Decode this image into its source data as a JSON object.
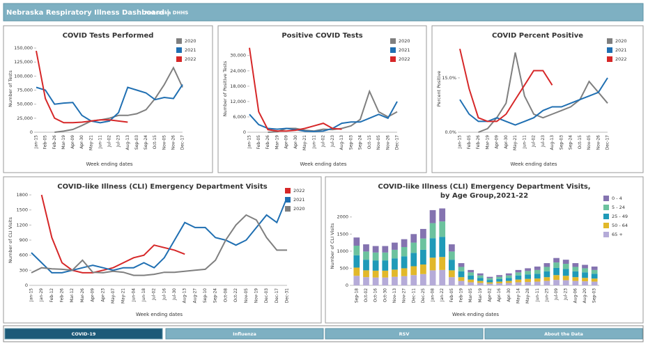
{
  "header": {
    "title": "Nebraska Respiratory Illness Dashboard |",
    "org": "Nebraska DHHS"
  },
  "tabs": {
    "items": [
      "COVID-19",
      "Influenza",
      "RSV",
      "About the Data"
    ],
    "active": 0
  },
  "chart_data": [
    {
      "type": "line",
      "title": "COVID Tests Performed",
      "y_label": "Number of Tests",
      "x_label": "Week ending dates",
      "legend": "top-right",
      "categories": [
        "Jan-15",
        "Feb-05",
        "Feb-26",
        "Mar-19",
        "Apr-09",
        "Apr-30",
        "May-21",
        "Jun-11",
        "Jul-02",
        "Jul-23",
        "Aug-13",
        "Sep-03",
        "Sep-24",
        "Oct-15",
        "Nov-05",
        "Nov-26",
        "Dec-17"
      ],
      "ylim": [
        0,
        155000
      ],
      "yticks": [
        0,
        {
          "value": 25000,
          "label": "25,000"
        },
        {
          "value": 50000,
          "label": "50,000"
        },
        {
          "value": 75000,
          "label": "75,000"
        },
        {
          "value": 100000,
          "label": "100,000"
        },
        {
          "value": 125000,
          "label": "125,000"
        },
        {
          "value": 150000,
          "label": "150,000"
        }
      ],
      "series": [
        {
          "name": "2020",
          "color": "#7f7f7f",
          "values": [
            null,
            null,
            0,
            2000,
            5000,
            12000,
            20000,
            22000,
            25000,
            30000,
            30000,
            33000,
            40000,
            60000,
            85000,
            115000,
            80000
          ]
        },
        {
          "name": "2021",
          "color": "#1f6fb2",
          "values": [
            80000,
            75000,
            50000,
            52000,
            53000,
            30000,
            20000,
            17000,
            20000,
            35000,
            80000,
            75000,
            70000,
            58000,
            62000,
            60000,
            85000
          ]
        },
        {
          "name": "2022",
          "color": "#d62728",
          "values": [
            145000,
            60000,
            25000,
            17000,
            17000,
            18000,
            20000,
            22000,
            22000,
            20000,
            18000,
            null,
            null,
            null,
            null,
            null,
            null
          ]
        }
      ]
    },
    {
      "type": "line",
      "title": "Positive COVID Tests",
      "y_label": "Number of Positive Tests",
      "x_label": "Week ending dates",
      "legend": "top-right",
      "categories": [
        "Jan-15",
        "Feb-05",
        "Feb-26",
        "Mar-19",
        "Apr-09",
        "Apr-30",
        "May-21",
        "Jun-11",
        "Jul-02",
        "Jul-23",
        "Aug-13",
        "Sep-03",
        "Sep-24",
        "Oct-15",
        "Nov-05",
        "Nov-26",
        "Dec-17"
      ],
      "ylim": [
        0,
        34000
      ],
      "yticks": [
        0,
        {
          "value": 6000,
          "label": "6,000"
        },
        {
          "value": 12000,
          "label": "12,000"
        },
        {
          "value": 18000,
          "label": "18,000"
        },
        {
          "value": 24000,
          "label": "24,000"
        },
        {
          "value": 30000,
          "label": "30,000"
        }
      ],
      "series": [
        {
          "name": "2020",
          "color": "#7f7f7f",
          "values": [
            null,
            null,
            0,
            200,
            1500,
            1500,
            800,
            500,
            1200,
            1000,
            1500,
            2500,
            5000,
            16000,
            8000,
            6000,
            8000
          ]
        },
        {
          "name": "2021",
          "color": "#1f6fb2",
          "values": [
            7000,
            3000,
            1500,
            1200,
            1500,
            1000,
            400,
            300,
            500,
            1500,
            3500,
            4000,
            4000,
            5500,
            7000,
            5500,
            12000
          ]
        },
        {
          "name": "2022",
          "color": "#d62728",
          "values": [
            33000,
            8000,
            1000,
            500,
            500,
            800,
            1500,
            2500,
            3500,
            1500,
            1200,
            null,
            null,
            null,
            null,
            null,
            null
          ]
        }
      ]
    },
    {
      "type": "line",
      "title": "COVID Percent Positive",
      "y_label": "Percent Positive",
      "x_label": "Week ending dates",
      "legend": "top-right",
      "categories": [
        "Jan-15",
        "Feb-05",
        "Feb-26",
        "Mar-19",
        "Apr-09",
        "Apr-30",
        "May-21",
        "Jun-11",
        "Jul-02",
        "Jul-23",
        "Aug-13",
        "Sep-03",
        "Sep-24",
        "Oct-15",
        "Nov-05",
        "Nov-26",
        "Dec-17"
      ],
      "ylim": [
        0,
        24
      ],
      "yticks": [
        {
          "value": 0,
          "label": "0.0%"
        },
        {
          "value": 15,
          "label": "15.0%"
        }
      ],
      "series": [
        {
          "name": "2020",
          "color": "#7f7f7f",
          "values": [
            null,
            null,
            0,
            1,
            4,
            8,
            22,
            10,
            5,
            4,
            5,
            6,
            7,
            9,
            14,
            11,
            8
          ]
        },
        {
          "name": "2021",
          "color": "#1f6fb2",
          "values": [
            9,
            5,
            3,
            3,
            4,
            3,
            2,
            3,
            4,
            6,
            7,
            7,
            8,
            9,
            10,
            11,
            15
          ]
        },
        {
          "name": "2022",
          "color": "#d62728",
          "values": [
            23,
            12,
            4,
            3,
            3,
            5,
            9,
            13,
            17,
            17,
            13,
            null,
            null,
            null,
            null,
            null,
            null
          ]
        }
      ]
    },
    {
      "type": "line",
      "title": "COVID-like Illness (CLI) Emergency Department Visits",
      "y_label": "Number of CLI Visits",
      "x_label": "Week ending dates",
      "legend": "top-right",
      "categories": [
        "Jan-15",
        "Jan-29",
        "Feb-12",
        "Feb-26",
        "Mar-12",
        "Mar-26",
        "Apr-09",
        "Apr-23",
        "May-07",
        "May-21",
        "Jun-04",
        "Jun-18",
        "Jul-02",
        "Jul-16",
        "Jul-30",
        "Aug-13",
        "Aug-27",
        "Sep-10",
        "Sep-24",
        "Oct-08",
        "Oct-22",
        "Nov-05",
        "Nov-19",
        "Dec-03",
        "Dec-17",
        "Dec-31"
      ],
      "ylim": [
        0,
        1800
      ],
      "yticks": [
        0,
        300,
        600,
        900,
        1200,
        1500,
        1800
      ],
      "series": [
        {
          "name": "2022",
          "color": "#d62728",
          "values": [
            null,
            1800,
            950,
            450,
            300,
            250,
            250,
            300,
            350,
            450,
            550,
            600,
            800,
            750,
            700,
            620,
            null,
            null,
            null,
            null,
            null,
            null,
            null,
            null,
            null,
            null
          ]
        },
        {
          "name": "2021",
          "color": "#1f6fb2",
          "values": [
            650,
            450,
            250,
            250,
            300,
            350,
            400,
            350,
            300,
            350,
            350,
            450,
            350,
            550,
            900,
            1250,
            1150,
            1150,
            950,
            900,
            800,
            900,
            1150,
            1400,
            1250,
            1750
          ]
        },
        {
          "name": "2020",
          "color": "#7f7f7f",
          "values": [
            250,
            350,
            330,
            320,
            300,
            500,
            260,
            250,
            280,
            260,
            200,
            200,
            220,
            260,
            260,
            280,
            300,
            320,
            500,
            900,
            1200,
            1400,
            1300,
            950,
            700,
            700
          ]
        }
      ]
    },
    {
      "type": "stacked-bar",
      "title": "COVID-like Illness (CLI) Emergency Department Visits,",
      "subtitle": "by Age Group,2021-22",
      "y_label": "Number of CLI Visits",
      "x_label": "Week ending dates",
      "legend": "top-right",
      "categories": [
        "Sep-18",
        "Oct-02",
        "Oct-16",
        "Oct-30",
        "Nov-13",
        "Nov-27",
        "Dec-11",
        "Dec-25",
        "Jan-08",
        "Jan-22",
        "Feb-05",
        "Feb-19",
        "Mar-05",
        "Mar-19",
        "Apr-02",
        "Apr-16",
        "Apr-30",
        "May-14",
        "May-28",
        "Jun-11",
        "Jun-25",
        "Jul-09",
        "Jul-23",
        "Aug-06",
        "Aug-20",
        "Sep-03"
      ],
      "ylim": [
        0,
        2300
      ],
      "yticks": [
        0,
        500,
        1000,
        1500,
        2000
      ],
      "series": [
        {
          "name": "0 - 4",
          "color": "#8473b0",
          "values": [
            240,
            210,
            190,
            190,
            210,
            230,
            250,
            280,
            380,
            380,
            210,
            110,
            70,
            60,
            40,
            50,
            60,
            70,
            80,
            100,
            110,
            130,
            120,
            110,
            100,
            100
          ]
        },
        {
          "name": "5 - 24",
          "color": "#6cc29e",
          "values": [
            280,
            240,
            230,
            230,
            250,
            270,
            300,
            330,
            440,
            450,
            240,
            130,
            90,
            70,
            50,
            60,
            70,
            90,
            100,
            110,
            130,
            160,
            150,
            130,
            120,
            110
          ]
        },
        {
          "name": "25 - 49",
          "color": "#1f9ab8",
          "values": [
            360,
            310,
            300,
            300,
            330,
            350,
            390,
            430,
            570,
            590,
            310,
            170,
            120,
            90,
            70,
            80,
            90,
            120,
            130,
            140,
            170,
            210,
            200,
            170,
            160,
            140
          ]
        },
        {
          "name": "50 - 64",
          "color": "#e1b82a",
          "values": [
            240,
            200,
            200,
            200,
            210,
            230,
            260,
            280,
            370,
            380,
            200,
            110,
            80,
            60,
            40,
            50,
            60,
            80,
            90,
            90,
            110,
            140,
            130,
            110,
            100,
            90
          ]
        },
        {
          "name": "65 +",
          "color": "#b5abd8",
          "values": [
            280,
            240,
            230,
            230,
            250,
            270,
            300,
            330,
            440,
            450,
            240,
            130,
            90,
            70,
            50,
            60,
            70,
            90,
            100,
            110,
            130,
            160,
            150,
            130,
            120,
            110
          ]
        }
      ]
    }
  ]
}
